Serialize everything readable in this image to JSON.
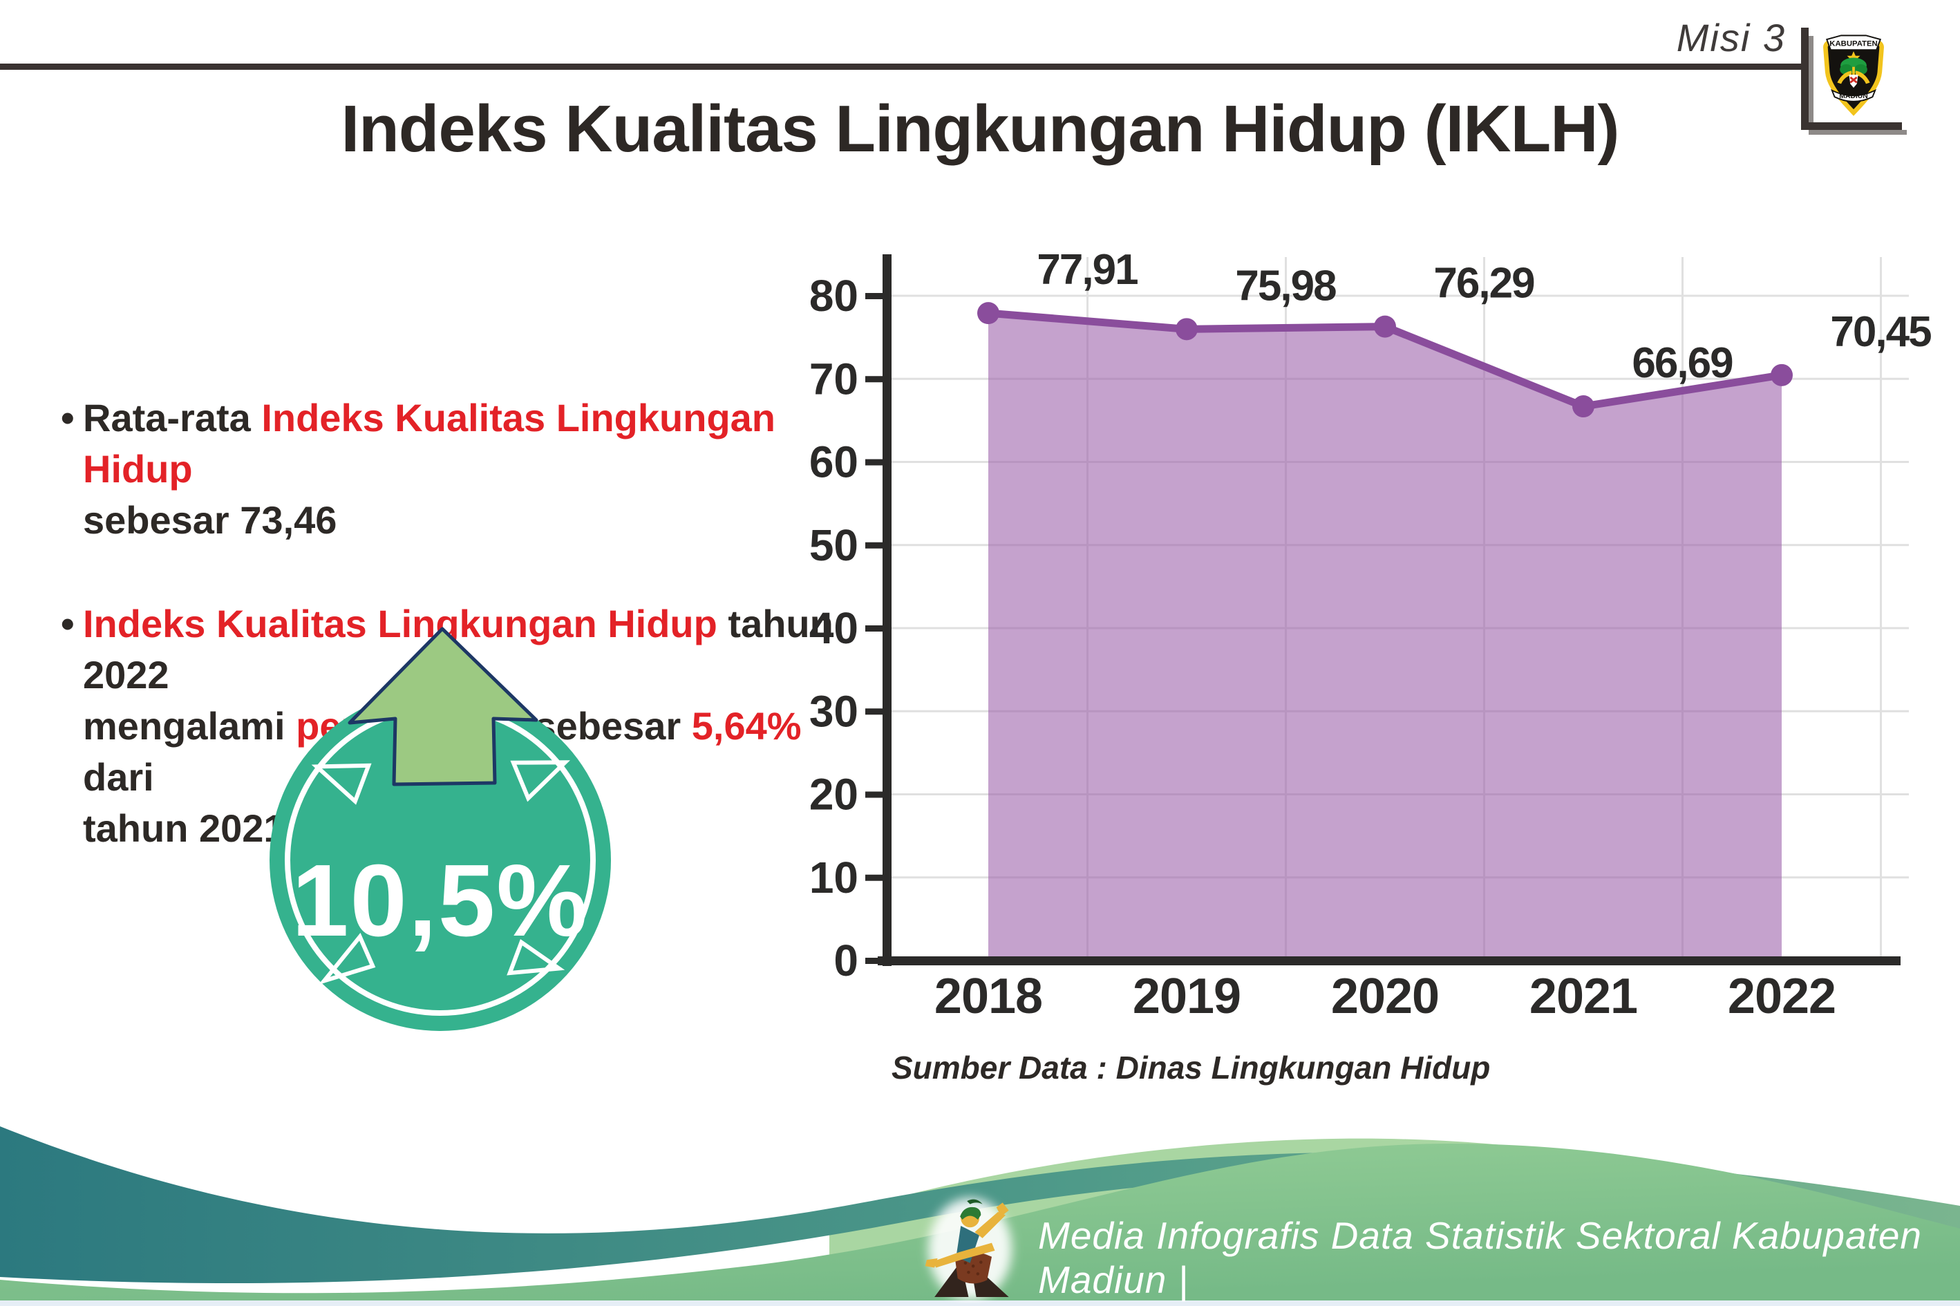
{
  "header": {
    "misi_label": "Misi 3",
    "logo": {
      "top_text": "KABUPATEN",
      "bottom_text": "MADIUN"
    }
  },
  "title": "Indeks Kualitas Lingkungan Hidup (IKLH)",
  "bullets": {
    "bullet_glyph": "•",
    "items": [
      {
        "lines": [
          [
            {
              "t": "Rata-rata ",
              "c": "dark"
            },
            {
              "t": "Indeks Kualitas Lingkungan Hidup",
              "c": "red"
            }
          ],
          [
            {
              "t": "sebesar 73,46",
              "c": "dark"
            }
          ]
        ]
      },
      {
        "lines": [
          [
            {
              "t": "Indeks Kualitas Lingkungan Hidup",
              "c": "red"
            },
            {
              "t": " tahun 2022",
              "c": "dark"
            }
          ],
          [
            {
              "t": "mengalami ",
              "c": "dark"
            },
            {
              "t": "peningkatan",
              "c": "red"
            },
            {
              "t": " sebesar ",
              "c": "dark"
            },
            {
              "t": "5,64%",
              "c": "red"
            },
            {
              "t": " dari",
              "c": "dark"
            }
          ],
          [
            {
              "t": "tahun 2021",
              "c": "dark"
            }
          ]
        ]
      }
    ]
  },
  "badge": {
    "value": "10,5%",
    "circle_color": "#35b28e",
    "arrow_fill": "#9cc982",
    "arrow_outline": "#1d3765",
    "text_color": "#ffffff"
  },
  "chart_data": {
    "type": "area",
    "title": "Indeks Kualitas Lingkungan Hidup (IKLH)",
    "categories": [
      "2018",
      "2019",
      "2020",
      "2021",
      "2022"
    ],
    "values": [
      77.91,
      75.98,
      76.29,
      66.69,
      70.45
    ],
    "value_labels": [
      "77,91",
      "75,98",
      "76,29",
      "66,69",
      "70,45"
    ],
    "y_ticks": [
      0,
      10,
      20,
      30,
      40,
      50,
      60,
      70,
      80
    ],
    "ylim": [
      0,
      83
    ],
    "grid": true,
    "legend": "none",
    "xlabel": "",
    "ylabel": "",
    "line_color": "#8a4d9c",
    "fill_color": "#9b5fa8",
    "axis_color": "#2b2a29",
    "grid_color": "#e0e0e0",
    "label_color": "#2b2a29"
  },
  "source_note": "Sumber Data : Dinas Lingkungan Hidup",
  "footer": {
    "text": "Media Infografis Data Statistik Sektoral Kabupaten Madiun |"
  }
}
